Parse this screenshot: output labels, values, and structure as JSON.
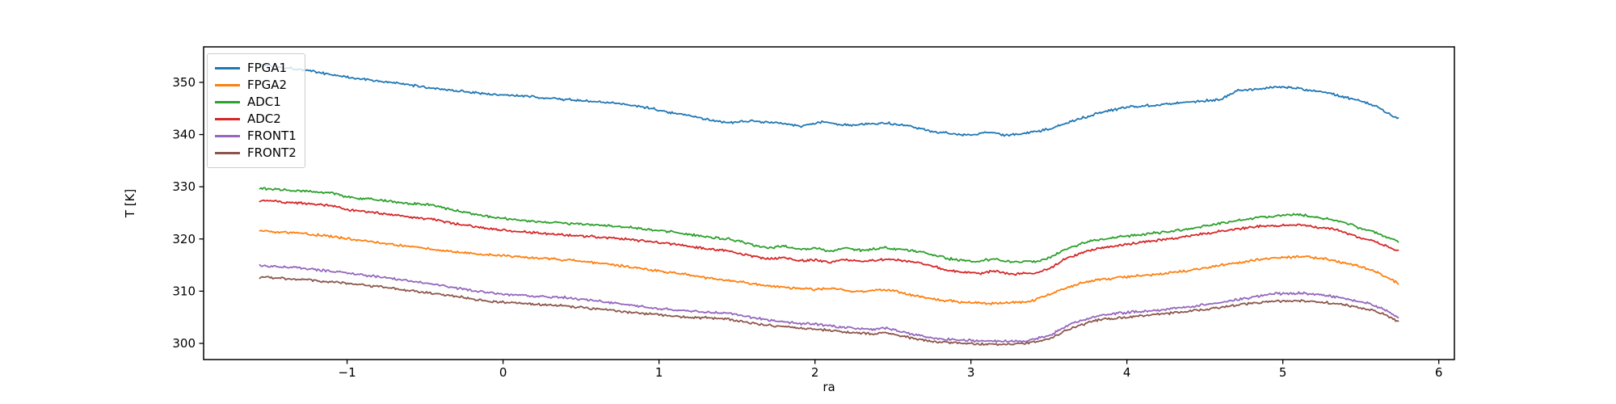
{
  "figure": {
    "background": "#ffffff"
  },
  "chart_data": {
    "type": "line",
    "title": "",
    "xlabel": "ra",
    "ylabel": "T [K]",
    "xlim": [
      -1.92,
      6.1
    ],
    "ylim": [
      296.9,
      356.8
    ],
    "xticks": [
      -1,
      0,
      1,
      2,
      3,
      4,
      5,
      6
    ],
    "yticks": [
      300,
      310,
      320,
      330,
      340,
      350
    ],
    "grid": false,
    "legend_position": "upper left",
    "data_x_range": [
      -1.56,
      5.74
    ],
    "noise_amplitude": 0.28,
    "series": [
      {
        "name": "FPGA1",
        "color": "#1f77b4",
        "points": [
          [
            -1.56,
            353.4
          ],
          [
            -1.3,
            352.5
          ],
          [
            -1.0,
            351.0
          ],
          [
            -0.7,
            349.9
          ],
          [
            -0.4,
            348.7
          ],
          [
            -0.1,
            347.8
          ],
          [
            0.2,
            347.2
          ],
          [
            0.5,
            346.5
          ],
          [
            0.8,
            345.8
          ],
          [
            1.0,
            344.7
          ],
          [
            1.2,
            343.5
          ],
          [
            1.45,
            342.2
          ],
          [
            1.6,
            342.6
          ],
          [
            1.75,
            342.3
          ],
          [
            1.9,
            341.6
          ],
          [
            2.05,
            342.4
          ],
          [
            2.2,
            341.8
          ],
          [
            2.35,
            342.0
          ],
          [
            2.45,
            342.3
          ],
          [
            2.6,
            341.7
          ],
          [
            2.75,
            340.6
          ],
          [
            2.9,
            340.1
          ],
          [
            3.0,
            339.9
          ],
          [
            3.1,
            340.5
          ],
          [
            3.2,
            339.9
          ],
          [
            3.35,
            340.2
          ],
          [
            3.5,
            341.0
          ],
          [
            3.65,
            342.6
          ],
          [
            3.8,
            344.0
          ],
          [
            4.0,
            345.3
          ],
          [
            4.2,
            345.7
          ],
          [
            4.4,
            346.3
          ],
          [
            4.6,
            346.7
          ],
          [
            4.7,
            348.4
          ],
          [
            4.85,
            348.8
          ],
          [
            5.0,
            349.2
          ],
          [
            5.1,
            348.8
          ],
          [
            5.3,
            347.9
          ],
          [
            5.5,
            346.4
          ],
          [
            5.6,
            345.4
          ],
          [
            5.74,
            343.0
          ]
        ]
      },
      {
        "name": "FPGA2",
        "color": "#ff7f0e",
        "points": [
          [
            -1.56,
            321.5
          ],
          [
            -1.35,
            321.2
          ],
          [
            -1.1,
            320.5
          ],
          [
            -0.9,
            319.7
          ],
          [
            -0.7,
            318.9
          ],
          [
            -0.5,
            318.2
          ],
          [
            -0.3,
            317.5
          ],
          [
            -0.1,
            317.0
          ],
          [
            0.15,
            316.5
          ],
          [
            0.4,
            316.0
          ],
          [
            0.65,
            315.3
          ],
          [
            0.9,
            314.3
          ],
          [
            1.1,
            313.5
          ],
          [
            1.3,
            312.6
          ],
          [
            1.5,
            311.9
          ],
          [
            1.7,
            311.0
          ],
          [
            1.85,
            310.6
          ],
          [
            2.0,
            310.3
          ],
          [
            2.1,
            310.6
          ],
          [
            2.25,
            309.9
          ],
          [
            2.4,
            310.2
          ],
          [
            2.5,
            310.1
          ],
          [
            2.65,
            309.1
          ],
          [
            2.8,
            308.3
          ],
          [
            2.95,
            307.9
          ],
          [
            3.1,
            307.7
          ],
          [
            3.25,
            307.7
          ],
          [
            3.4,
            308.2
          ],
          [
            3.55,
            310.0
          ],
          [
            3.7,
            311.5
          ],
          [
            3.85,
            312.3
          ],
          [
            4.05,
            312.9
          ],
          [
            4.25,
            313.4
          ],
          [
            4.45,
            314.2
          ],
          [
            4.65,
            315.2
          ],
          [
            4.85,
            316.1
          ],
          [
            5.0,
            316.5
          ],
          [
            5.15,
            316.6
          ],
          [
            5.3,
            316.0
          ],
          [
            5.5,
            314.7
          ],
          [
            5.6,
            313.7
          ],
          [
            5.74,
            311.5
          ]
        ]
      },
      {
        "name": "ADC1",
        "color": "#2ca02c",
        "points": [
          [
            -1.56,
            329.7
          ],
          [
            -1.3,
            329.2
          ],
          [
            -1.1,
            328.8
          ],
          [
            -1.0,
            328.0
          ],
          [
            -0.8,
            327.5
          ],
          [
            -0.6,
            326.8
          ],
          [
            -0.45,
            326.5
          ],
          [
            -0.3,
            325.4
          ],
          [
            -0.1,
            324.3
          ],
          [
            0.1,
            323.6
          ],
          [
            0.35,
            323.1
          ],
          [
            0.6,
            322.7
          ],
          [
            0.85,
            322.1
          ],
          [
            1.1,
            321.3
          ],
          [
            1.3,
            320.4
          ],
          [
            1.45,
            320.0
          ],
          [
            1.6,
            318.9
          ],
          [
            1.7,
            318.3
          ],
          [
            1.8,
            318.6
          ],
          [
            1.9,
            318.0
          ],
          [
            2.0,
            318.2
          ],
          [
            2.1,
            317.7
          ],
          [
            2.2,
            318.3
          ],
          [
            2.3,
            317.8
          ],
          [
            2.45,
            318.3
          ],
          [
            2.6,
            317.9
          ],
          [
            2.7,
            317.4
          ],
          [
            2.8,
            316.6
          ],
          [
            2.9,
            316.0
          ],
          [
            3.05,
            315.7
          ],
          [
            3.15,
            316.2
          ],
          [
            3.25,
            315.6
          ],
          [
            3.4,
            315.6
          ],
          [
            3.5,
            316.3
          ],
          [
            3.6,
            318.0
          ],
          [
            3.75,
            319.5
          ],
          [
            3.9,
            320.2
          ],
          [
            4.1,
            320.9
          ],
          [
            4.3,
            321.5
          ],
          [
            4.5,
            322.4
          ],
          [
            4.7,
            323.5
          ],
          [
            4.85,
            324.2
          ],
          [
            5.0,
            324.5
          ],
          [
            5.1,
            324.7
          ],
          [
            5.2,
            324.2
          ],
          [
            5.35,
            323.6
          ],
          [
            5.5,
            322.0
          ],
          [
            5.6,
            321.2
          ],
          [
            5.74,
            319.5
          ]
        ]
      },
      {
        "name": "ADC2",
        "color": "#d62728",
        "points": [
          [
            -1.56,
            327.4
          ],
          [
            -1.3,
            326.9
          ],
          [
            -1.1,
            326.4
          ],
          [
            -1.0,
            325.6
          ],
          [
            -0.8,
            325.0
          ],
          [
            -0.6,
            324.2
          ],
          [
            -0.45,
            323.8
          ],
          [
            -0.3,
            322.9
          ],
          [
            -0.1,
            322.0
          ],
          [
            0.1,
            321.4
          ],
          [
            0.35,
            320.9
          ],
          [
            0.6,
            320.4
          ],
          [
            0.85,
            319.8
          ],
          [
            1.1,
            319.0
          ],
          [
            1.3,
            318.1
          ],
          [
            1.45,
            317.7
          ],
          [
            1.6,
            316.7
          ],
          [
            1.7,
            316.2
          ],
          [
            1.8,
            316.4
          ],
          [
            1.9,
            315.8
          ],
          [
            2.0,
            316.0
          ],
          [
            2.1,
            315.5
          ],
          [
            2.2,
            316.1
          ],
          [
            2.3,
            315.6
          ],
          [
            2.45,
            316.1
          ],
          [
            2.6,
            315.7
          ],
          [
            2.7,
            315.2
          ],
          [
            2.8,
            314.4
          ],
          [
            2.9,
            313.8
          ],
          [
            3.05,
            313.4
          ],
          [
            3.15,
            313.9
          ],
          [
            3.25,
            313.3
          ],
          [
            3.4,
            313.4
          ],
          [
            3.5,
            314.2
          ],
          [
            3.6,
            316.2
          ],
          [
            3.75,
            317.8
          ],
          [
            3.9,
            318.6
          ],
          [
            4.1,
            319.4
          ],
          [
            4.3,
            320.1
          ],
          [
            4.5,
            321.0
          ],
          [
            4.7,
            321.9
          ],
          [
            4.85,
            322.4
          ],
          [
            5.0,
            322.6
          ],
          [
            5.1,
            322.8
          ],
          [
            5.2,
            322.3
          ],
          [
            5.35,
            321.8
          ],
          [
            5.5,
            320.2
          ],
          [
            5.6,
            319.4
          ],
          [
            5.74,
            317.7
          ]
        ]
      },
      {
        "name": "FRONT1",
        "color": "#9467bd",
        "points": [
          [
            -1.56,
            314.9
          ],
          [
            -1.3,
            314.4
          ],
          [
            -1.0,
            313.5
          ],
          [
            -0.75,
            312.6
          ],
          [
            -0.5,
            311.6
          ],
          [
            -0.3,
            310.6
          ],
          [
            -0.11,
            309.7
          ],
          [
            0.1,
            309.2
          ],
          [
            0.4,
            308.8
          ],
          [
            0.7,
            307.8
          ],
          [
            1.0,
            306.6
          ],
          [
            1.2,
            306.2
          ],
          [
            1.44,
            305.8
          ],
          [
            1.6,
            304.9
          ],
          [
            1.75,
            304.3
          ],
          [
            1.9,
            303.8
          ],
          [
            2.06,
            303.5
          ],
          [
            2.2,
            303.0
          ],
          [
            2.37,
            302.7
          ],
          [
            2.45,
            303.0
          ],
          [
            2.6,
            301.9
          ],
          [
            2.75,
            301.0
          ],
          [
            2.9,
            300.7
          ],
          [
            3.05,
            300.5
          ],
          [
            3.2,
            300.4
          ],
          [
            3.35,
            300.5
          ],
          [
            3.5,
            301.5
          ],
          [
            3.65,
            303.8
          ],
          [
            3.8,
            305.2
          ],
          [
            4.0,
            305.9
          ],
          [
            4.2,
            306.4
          ],
          [
            4.4,
            307.0
          ],
          [
            4.6,
            307.8
          ],
          [
            4.8,
            308.8
          ],
          [
            4.95,
            309.5
          ],
          [
            5.1,
            309.6
          ],
          [
            5.25,
            309.3
          ],
          [
            5.4,
            308.6
          ],
          [
            5.55,
            307.6
          ],
          [
            5.65,
            306.5
          ],
          [
            5.74,
            304.9
          ]
        ]
      },
      {
        "name": "FRONT2",
        "color": "#8c564b",
        "points": [
          [
            -1.56,
            312.7
          ],
          [
            -1.3,
            312.3
          ],
          [
            -1.0,
            311.5
          ],
          [
            -0.75,
            310.7
          ],
          [
            -0.5,
            309.8
          ],
          [
            -0.3,
            309.0
          ],
          [
            -0.11,
            308.1
          ],
          [
            0.1,
            307.7
          ],
          [
            0.4,
            307.2
          ],
          [
            0.7,
            306.3
          ],
          [
            1.0,
            305.5
          ],
          [
            1.2,
            305.0
          ],
          [
            1.44,
            304.7
          ],
          [
            1.6,
            303.9
          ],
          [
            1.75,
            303.3
          ],
          [
            1.9,
            302.9
          ],
          [
            2.06,
            302.6
          ],
          [
            2.2,
            302.1
          ],
          [
            2.37,
            301.8
          ],
          [
            2.45,
            302.1
          ],
          [
            2.6,
            301.1
          ],
          [
            2.75,
            300.4
          ],
          [
            2.9,
            300.1
          ],
          [
            3.05,
            299.9
          ],
          [
            3.2,
            299.8
          ],
          [
            3.35,
            300.0
          ],
          [
            3.5,
            300.9
          ],
          [
            3.65,
            303.0
          ],
          [
            3.8,
            304.4
          ],
          [
            4.0,
            305.1
          ],
          [
            4.2,
            305.6
          ],
          [
            4.4,
            306.1
          ],
          [
            4.6,
            306.9
          ],
          [
            4.8,
            307.7
          ],
          [
            4.95,
            308.1
          ],
          [
            5.1,
            308.2
          ],
          [
            5.25,
            307.9
          ],
          [
            5.4,
            307.4
          ],
          [
            5.55,
            306.5
          ],
          [
            5.65,
            305.6
          ],
          [
            5.74,
            304.2
          ]
        ]
      }
    ]
  }
}
